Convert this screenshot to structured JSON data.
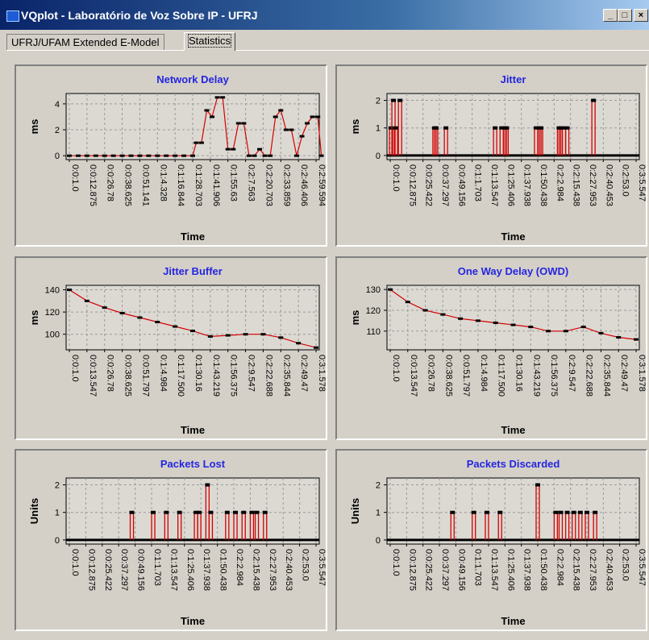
{
  "window": {
    "title": "VQplot - Laboratório de Voz Sobre IP - UFRJ",
    "controls": [
      "_",
      "□",
      "×"
    ]
  },
  "tabs": [
    {
      "label": "UFRJ/UFAM Extended E-Model",
      "active": false
    },
    {
      "label": "Statistics",
      "active": true
    }
  ],
  "colors": {
    "title": "#2525e0",
    "series": "#d40000",
    "marker": "#000000",
    "grid": "#9a9a9a"
  },
  "chart_data": [
    {
      "type": "line",
      "title": "Network Delay",
      "xlabel": "Time",
      "ylabel": "ms",
      "yticks": [
        0,
        2,
        4
      ],
      "ylim": [
        -0.3,
        4.8
      ],
      "xticks": [
        "0:0:1.0",
        "0:0:12.875",
        "0:0:26.78",
        "0:0:38.625",
        "0:0:51.141",
        "0:1:4.328",
        "0:1:16.844",
        "0:1:28.703",
        "0:1:41.906",
        "0:1:55.63",
        "0:2:7.563",
        "0:2:20.703",
        "0:2:33.859",
        "0:2:46.406",
        "0:2:59.594"
      ],
      "x": [
        0,
        0.5,
        1,
        1.5,
        2,
        2.5,
        3,
        3.5,
        4,
        4.5,
        5,
        5.5,
        6,
        6.5,
        7,
        7.2,
        7.5,
        7.8,
        8.1,
        8.4,
        8.7,
        9,
        9.3,
        9.6,
        9.9,
        10.2,
        10.5,
        10.8,
        11.1,
        11.4,
        11.7,
        12,
        12.3,
        12.6,
        12.9,
        13.2,
        13.5,
        13.8,
        14.1,
        14.3
      ],
      "y": [
        0,
        0,
        0,
        0,
        0,
        0,
        0,
        0,
        0,
        0,
        0,
        0,
        0,
        0,
        0,
        1,
        1,
        3.5,
        3,
        4.5,
        4.5,
        0.5,
        0.5,
        2.5,
        2.5,
        0,
        0,
        0.5,
        0,
        0,
        3,
        3.5,
        2,
        2,
        0,
        1.5,
        2.5,
        3,
        3,
        0
      ],
      "grid": true
    },
    {
      "type": "scatter",
      "title": "Jitter",
      "xlabel": "Time",
      "ylabel": "ms",
      "yticks": [
        0,
        1,
        2
      ],
      "ylim": [
        -0.15,
        2.25
      ],
      "xticks": [
        "0:0:1.0",
        "0:0:12.875",
        "0:0:25.422",
        "0:0:37.297",
        "0:0:49.156",
        "0:1:1.703",
        "0:1:13.547",
        "0:1:25.406",
        "0:1:37.938",
        "0:1:50.438",
        "0:2:2.984",
        "0:2:15.438",
        "0:2:27.953",
        "0:2:40.453",
        "0:2:53.0",
        "0:3:5.547"
      ],
      "x": [
        0.05,
        0.2,
        0.35,
        0.6,
        2.7,
        2.8,
        3.4,
        6.4,
        6.8,
        7.0,
        7.1,
        8.9,
        9.1,
        9.2,
        10.3,
        10.4,
        10.6,
        10.8,
        12.4
      ],
      "y": [
        1,
        2,
        1,
        2,
        1,
        1,
        1,
        1,
        1,
        1,
        1,
        1,
        1,
        1,
        1,
        1,
        1,
        1,
        2
      ],
      "grid": true
    },
    {
      "type": "line",
      "title": "Jitter Buffer",
      "xlabel": "Time",
      "ylabel": "ms",
      "yticks": [
        100,
        120,
        140
      ],
      "ylim": [
        86,
        144
      ],
      "xticks": [
        "0:0:1.0",
        "0:0:13.547",
        "0:0:26.78",
        "0:0:38.625",
        "0:0:51.797",
        "0:1:4.984",
        "0:1:17.500",
        "0:1:30.16",
        "0:1:43.219",
        "0:1:56.375",
        "0:2:9.547",
        "0:2:22.688",
        "0:2:35.844",
        "0:2:49.47",
        "0:3:1.578"
      ],
      "x": [
        0,
        1,
        2,
        3,
        4,
        5,
        6,
        7,
        8,
        9,
        10,
        11,
        12,
        13,
        14
      ],
      "y": [
        140,
        130,
        124,
        119,
        115,
        111,
        107,
        103,
        98,
        99,
        100,
        100,
        97,
        92,
        88
      ],
      "grid": true
    },
    {
      "type": "line",
      "title": "One Way Delay (OWD)",
      "xlabel": "Time",
      "ylabel": "ms",
      "yticks": [
        110,
        120,
        130
      ],
      "ylim": [
        101,
        132
      ],
      "xticks": [
        "0:0:1.0",
        "0:0:13.547",
        "0:0:26.78",
        "0:0:38.625",
        "0:0:51.797",
        "0:1:4.984",
        "0:1:17.500",
        "0:1:30.16",
        "0:1:43.219",
        "0:1:56.375",
        "0:2:9.547",
        "0:2:22.688",
        "0:2:35.844",
        "0:2:49.47",
        "0:3:1.578"
      ],
      "x": [
        0,
        1,
        2,
        3,
        4,
        5,
        6,
        7,
        8,
        9,
        10,
        11,
        12,
        13,
        14
      ],
      "y": [
        130,
        124,
        120,
        118,
        116,
        115,
        114,
        113,
        112,
        110,
        110,
        112,
        109,
        107,
        106
      ],
      "grid": true
    },
    {
      "type": "scatter",
      "title": "Packets Lost",
      "xlabel": "Time",
      "ylabel": "Units",
      "yticks": [
        0,
        1,
        2
      ],
      "ylim": [
        -0.15,
        2.25
      ],
      "xticks": [
        "0:0:1.0",
        "0:0:12.875",
        "0:0:25.422",
        "0:0:37.297",
        "0:0:49.156",
        "0:1:1.703",
        "0:1:13.547",
        "0:1:25.406",
        "0:1:37.938",
        "0:1:50.438",
        "0:2:2.984",
        "0:2:15.438",
        "0:2:27.953",
        "0:2:40.453",
        "0:2:53.0",
        "0:3:5.547"
      ],
      "x": [
        3.8,
        5.1,
        5.9,
        6.7,
        7.7,
        7.9,
        8.4,
        8.6,
        9.6,
        10.1,
        10.6,
        11.1,
        11.4,
        11.9
      ],
      "y": [
        1,
        1,
        1,
        1,
        1,
        1,
        2,
        1,
        1,
        1,
        1,
        1,
        1,
        1
      ],
      "grid": true
    },
    {
      "type": "scatter",
      "title": "Packets Discarded",
      "xlabel": "Time",
      "ylabel": "Units",
      "yticks": [
        0,
        1,
        2
      ],
      "ylim": [
        -0.15,
        2.25
      ],
      "xticks": [
        "0:0:1.0",
        "0:0:12.875",
        "0:0:25.422",
        "0:0:37.297",
        "0:0:49.156",
        "0:1:1.703",
        "0:1:13.547",
        "0:1:25.406",
        "0:1:37.938",
        "0:1:50.438",
        "0:2:2.984",
        "0:2:15.438",
        "0:2:27.953",
        "0:2:40.453",
        "0:2:53.0",
        "0:3:5.547"
      ],
      "x": [
        3.8,
        5.1,
        5.9,
        6.7,
        9.0,
        10.1,
        10.4,
        10.8,
        11.2,
        11.6,
        12.0,
        12.5
      ],
      "y": [
        1,
        1,
        1,
        1,
        2,
        1,
        1,
        1,
        1,
        1,
        1,
        1
      ],
      "grid": true
    }
  ]
}
